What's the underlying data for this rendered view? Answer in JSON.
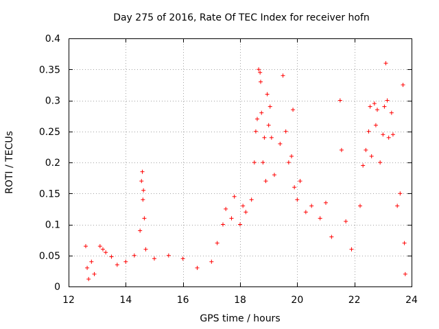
{
  "chart_data": {
    "type": "scatter",
    "title": "Day 275 of 2016, Rate Of TEC Index for receiver hofn",
    "xlabel": "GPS time / hours",
    "ylabel": "ROTI / TECUs",
    "xlim": [
      12,
      24
    ],
    "ylim": [
      0,
      0.4
    ],
    "x_ticks": [
      12,
      14,
      16,
      18,
      20,
      22,
      24
    ],
    "y_ticks": [
      0,
      0.05,
      0.1,
      0.15,
      0.2,
      0.25,
      0.3,
      0.35,
      0.4
    ],
    "x_tick_labels": [
      "12",
      "14",
      "16",
      "18",
      "20",
      "22",
      "24"
    ],
    "y_tick_labels": [
      "0",
      "0.05",
      "0.1",
      "0.15",
      "0.2",
      "0.25",
      "0.3",
      "0.35",
      "0.4"
    ],
    "grid": true,
    "marker": "+",
    "marker_color": "#ff0000",
    "series": [
      {
        "name": "ROTI",
        "points": [
          [
            12.6,
            0.065
          ],
          [
            12.65,
            0.03
          ],
          [
            12.7,
            0.012
          ],
          [
            12.8,
            0.04
          ],
          [
            12.9,
            0.02
          ],
          [
            13.1,
            0.065
          ],
          [
            13.2,
            0.06
          ],
          [
            13.3,
            0.055
          ],
          [
            13.5,
            0.048
          ],
          [
            13.7,
            0.035
          ],
          [
            14.0,
            0.04
          ],
          [
            14.3,
            0.05
          ],
          [
            14.5,
            0.09
          ],
          [
            14.55,
            0.17
          ],
          [
            14.58,
            0.185
          ],
          [
            14.6,
            0.14
          ],
          [
            14.62,
            0.155
          ],
          [
            14.65,
            0.11
          ],
          [
            14.7,
            0.06
          ],
          [
            15.0,
            0.045
          ],
          [
            15.5,
            0.05
          ],
          [
            16.0,
            0.045
          ],
          [
            16.5,
            0.03
          ],
          [
            17.0,
            0.04
          ],
          [
            17.2,
            0.07
          ],
          [
            17.4,
            0.1
          ],
          [
            17.5,
            0.125
          ],
          [
            17.7,
            0.11
          ],
          [
            17.8,
            0.145
          ],
          [
            18.0,
            0.1
          ],
          [
            18.1,
            0.13
          ],
          [
            18.2,
            0.12
          ],
          [
            18.4,
            0.14
          ],
          [
            18.5,
            0.2
          ],
          [
            18.55,
            0.25
          ],
          [
            18.6,
            0.27
          ],
          [
            18.65,
            0.35
          ],
          [
            18.7,
            0.345
          ],
          [
            18.72,
            0.33
          ],
          [
            18.75,
            0.28
          ],
          [
            18.8,
            0.2
          ],
          [
            18.85,
            0.24
          ],
          [
            18.9,
            0.17
          ],
          [
            18.95,
            0.31
          ],
          [
            19.0,
            0.26
          ],
          [
            19.05,
            0.29
          ],
          [
            19.1,
            0.24
          ],
          [
            19.2,
            0.18
          ],
          [
            19.4,
            0.23
          ],
          [
            19.5,
            0.34
          ],
          [
            19.6,
            0.25
          ],
          [
            19.7,
            0.2
          ],
          [
            19.8,
            0.21
          ],
          [
            19.85,
            0.285
          ],
          [
            19.9,
            0.16
          ],
          [
            20.0,
            0.14
          ],
          [
            20.1,
            0.17
          ],
          [
            20.3,
            0.12
          ],
          [
            20.5,
            0.13
          ],
          [
            20.8,
            0.11
          ],
          [
            21.0,
            0.135
          ],
          [
            21.2,
            0.08
          ],
          [
            21.5,
            0.3
          ],
          [
            21.55,
            0.22
          ],
          [
            21.7,
            0.105
          ],
          [
            21.9,
            0.06
          ],
          [
            22.2,
            0.13
          ],
          [
            22.3,
            0.195
          ],
          [
            22.4,
            0.22
          ],
          [
            22.5,
            0.25
          ],
          [
            22.55,
            0.29
          ],
          [
            22.6,
            0.21
          ],
          [
            22.7,
            0.295
          ],
          [
            22.75,
            0.26
          ],
          [
            22.8,
            0.285
          ],
          [
            22.9,
            0.2
          ],
          [
            23.0,
            0.245
          ],
          [
            23.05,
            0.29
          ],
          [
            23.1,
            0.36
          ],
          [
            23.15,
            0.3
          ],
          [
            23.2,
            0.24
          ],
          [
            23.3,
            0.28
          ],
          [
            23.35,
            0.245
          ],
          [
            23.5,
            0.13
          ],
          [
            23.6,
            0.15
          ],
          [
            23.7,
            0.325
          ],
          [
            23.75,
            0.07
          ],
          [
            23.78,
            0.02
          ]
        ]
      }
    ]
  }
}
